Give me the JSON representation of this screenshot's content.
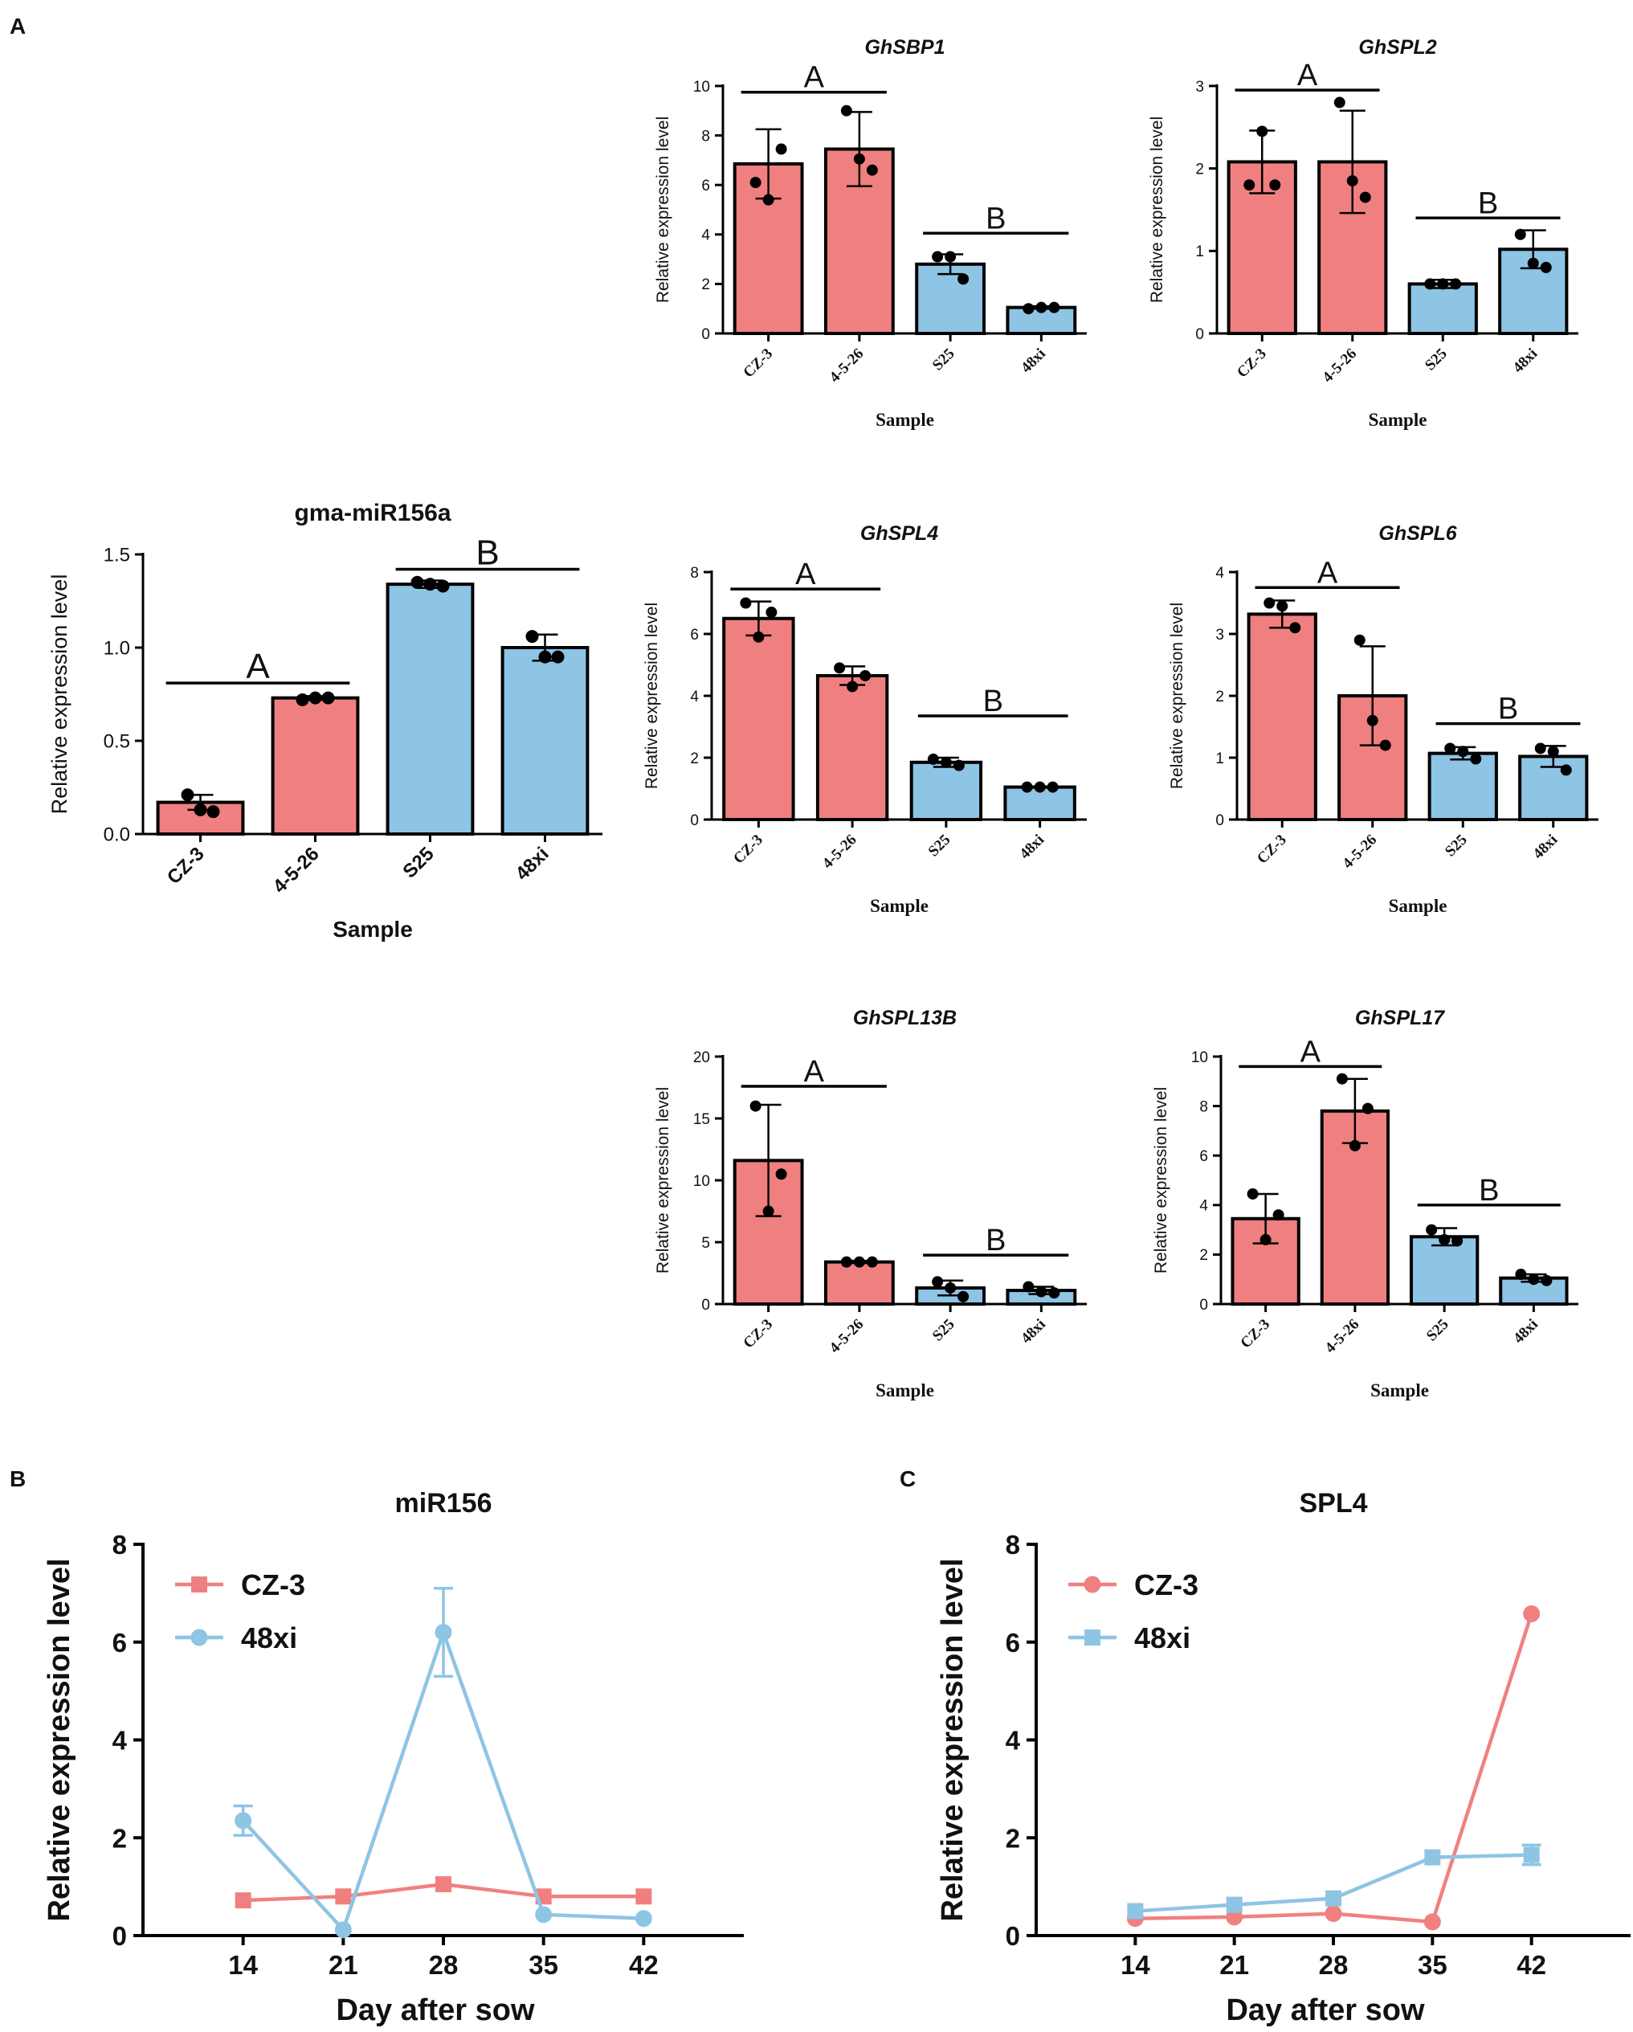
{
  "panels": {
    "A": "A",
    "B": "B",
    "C": "C"
  },
  "colors": {
    "red": "#F08080",
    "blue": "#8EC4E4",
    "axis": "#000000"
  },
  "chart_data": [
    {
      "id": "ghsbp1",
      "type": "bar",
      "title": "GhSBP1",
      "italic_title": true,
      "xlabel": "Sample",
      "ylabel": "Relative expression level",
      "categories": [
        "CZ-3",
        "4-5-26",
        "S25",
        "48xi"
      ],
      "values": [
        6.85,
        7.45,
        2.8,
        1.05
      ],
      "errors": [
        1.4,
        1.5,
        0.4,
        0.05
      ],
      "points": [
        [
          6.1,
          7.45,
          5.4
        ],
        [
          9.0,
          6.6,
          7.05
        ],
        [
          3.1,
          2.2,
          3.1
        ],
        [
          1.0,
          1.05,
          1.05
        ]
      ],
      "bar_colors": [
        "red",
        "red",
        "blue",
        "blue"
      ],
      "ylim": [
        0,
        10
      ],
      "yticks": [
        0,
        2,
        4,
        6,
        8,
        10
      ],
      "tick_labels": [
        "0",
        "2",
        "4",
        "6",
        "8",
        "10"
      ],
      "groups": [
        {
          "label": "A",
          "from": 0,
          "to": 1,
          "y": 9.75
        },
        {
          "label": "B",
          "from": 2,
          "to": 3,
          "y": 4.05
        }
      ]
    },
    {
      "id": "ghspl2",
      "type": "bar",
      "title": "GhSPL2",
      "italic_title": true,
      "xlabel": "Sample",
      "ylabel": "Relative expression level",
      "categories": [
        "CZ-3",
        "4-5-26",
        "S25",
        "48xi"
      ],
      "values": [
        2.08,
        2.08,
        0.6,
        1.02
      ],
      "errors": [
        0.38,
        0.62,
        0.05,
        0.23
      ],
      "points": [
        [
          1.8,
          1.8,
          2.45
        ],
        [
          2.8,
          1.65,
          1.85
        ],
        [
          0.6,
          0.6,
          0.6
        ],
        [
          1.2,
          0.8,
          0.85
        ]
      ],
      "bar_colors": [
        "red",
        "red",
        "blue",
        "blue"
      ],
      "ylim": [
        0,
        3
      ],
      "yticks": [
        0,
        1,
        2,
        3
      ],
      "tick_labels": [
        "0",
        "1",
        "2",
        "3"
      ],
      "groups": [
        {
          "label": "A",
          "from": 0,
          "to": 1,
          "y": 2.95
        },
        {
          "label": "B",
          "from": 2,
          "to": 3,
          "y": 1.4
        }
      ]
    },
    {
      "id": "gma-mir156a",
      "type": "bar",
      "title": "gma-miR156a",
      "italic_title": false,
      "xlabel": "Sample",
      "ylabel": "Relative expression level",
      "categories": [
        "CZ-3",
        "4-5-26",
        "S25",
        "48xi"
      ],
      "values": [
        0.17,
        0.73,
        1.34,
        1.0
      ],
      "errors": [
        0.04,
        0.01,
        0.02,
        0.07
      ],
      "points": [
        [
          0.21,
          0.12,
          0.13
        ],
        [
          0.72,
          0.73,
          0.73
        ],
        [
          1.35,
          1.33,
          1.34
        ],
        [
          1.06,
          0.95,
          0.95
        ]
      ],
      "bar_colors": [
        "red",
        "red",
        "blue",
        "blue"
      ],
      "ylim": [
        0,
        1.5
      ],
      "yticks": [
        0,
        0.5,
        1.0,
        1.5
      ],
      "tick_labels": [
        "0.0",
        "0.5",
        "1.0",
        "1.5"
      ],
      "groups": [
        {
          "label": "A",
          "from": 0,
          "to": 1,
          "y": 0.81
        },
        {
          "label": "B",
          "from": 2,
          "to": 3,
          "y": 1.42
        }
      ]
    },
    {
      "id": "ghspl4",
      "type": "bar",
      "title": "GhSPL4",
      "italic_title": true,
      "xlabel": "Sample",
      "ylabel": "Relative expression level",
      "categories": [
        "CZ-3",
        "4-5-26",
        "S25",
        "48xi"
      ],
      "values": [
        6.5,
        4.65,
        1.85,
        1.05
      ],
      "errors": [
        0.55,
        0.3,
        0.15,
        0.02
      ],
      "points": [
        [
          7.0,
          6.7,
          5.9
        ],
        [
          4.9,
          4.65,
          4.3
        ],
        [
          1.95,
          1.75,
          1.85
        ],
        [
          1.05,
          1.05,
          1.05
        ]
      ],
      "bar_colors": [
        "red",
        "red",
        "blue",
        "blue"
      ],
      "ylim": [
        0,
        8
      ],
      "yticks": [
        0,
        2,
        4,
        6,
        8
      ],
      "tick_labels": [
        "0",
        "2",
        "4",
        "6",
        "8"
      ],
      "groups": [
        {
          "label": "A",
          "from": 0,
          "to": 1,
          "y": 7.45
        },
        {
          "label": "B",
          "from": 2,
          "to": 3,
          "y": 3.35
        }
      ]
    },
    {
      "id": "ghspl6",
      "type": "bar",
      "title": "GhSPL6",
      "italic_title": true,
      "xlabel": "Sample",
      "ylabel": "Relative expression level",
      "categories": [
        "CZ-3",
        "4-5-26",
        "S25",
        "48xi"
      ],
      "values": [
        3.32,
        2.0,
        1.07,
        1.02
      ],
      "errors": [
        0.22,
        0.8,
        0.1,
        0.17
      ],
      "points": [
        [
          3.5,
          3.1,
          3.45
        ],
        [
          2.9,
          1.2,
          1.6
        ],
        [
          1.15,
          0.98,
          1.1
        ],
        [
          1.15,
          0.8,
          1.1
        ]
      ],
      "bar_colors": [
        "red",
        "red",
        "blue",
        "blue"
      ],
      "ylim": [
        0,
        4
      ],
      "yticks": [
        0,
        1,
        2,
        3,
        4
      ],
      "tick_labels": [
        "0",
        "1",
        "2",
        "3",
        "4"
      ],
      "groups": [
        {
          "label": "A",
          "from": 0,
          "to": 1,
          "y": 3.75
        },
        {
          "label": "B",
          "from": 2,
          "to": 3,
          "y": 1.55
        }
      ]
    },
    {
      "id": "ghspl13b",
      "type": "bar",
      "title": "GhSPL13B",
      "italic_title": true,
      "xlabel": "Sample",
      "ylabel": "Relative expression level",
      "categories": [
        "CZ-3",
        "4-5-26",
        "S25",
        "48xi"
      ],
      "values": [
        11.6,
        3.4,
        1.3,
        1.1
      ],
      "errors": [
        4.5,
        0.1,
        0.6,
        0.3
      ],
      "points": [
        [
          16.0,
          10.5,
          7.5
        ],
        [
          3.4,
          3.4,
          3.4
        ],
        [
          1.8,
          0.6,
          1.3
        ],
        [
          1.4,
          0.9,
          1.0
        ]
      ],
      "bar_colors": [
        "red",
        "red",
        "blue",
        "blue"
      ],
      "ylim": [
        0,
        20
      ],
      "yticks": [
        0,
        5,
        10,
        15,
        20
      ],
      "tick_labels": [
        "0",
        "5",
        "10",
        "15",
        "20"
      ],
      "groups": [
        {
          "label": "A",
          "from": 0,
          "to": 1,
          "y": 17.6
        },
        {
          "label": "B",
          "from": 2,
          "to": 3,
          "y": 3.95
        }
      ]
    },
    {
      "id": "ghspl17",
      "type": "bar",
      "title": "GhSPL17",
      "italic_title": true,
      "xlabel": "Sample",
      "ylabel": "Relative expression level",
      "categories": [
        "CZ-3",
        "4-5-26",
        "S25",
        "48xi"
      ],
      "values": [
        3.45,
        7.8,
        2.72,
        1.05
      ],
      "errors": [
        1.0,
        1.3,
        0.35,
        0.15
      ],
      "points": [
        [
          4.45,
          3.6,
          2.6
        ],
        [
          9.1,
          7.9,
          6.4
        ],
        [
          3.0,
          2.55,
          2.6
        ],
        [
          1.2,
          0.95,
          1.0
        ]
      ],
      "bar_colors": [
        "red",
        "red",
        "blue",
        "blue"
      ],
      "ylim": [
        0,
        10
      ],
      "yticks": [
        0,
        2,
        4,
        6,
        8,
        10
      ],
      "tick_labels": [
        "0",
        "2",
        "4",
        "6",
        "8",
        "10"
      ],
      "groups": [
        {
          "label": "A",
          "from": 0,
          "to": 1,
          "y": 9.6
        },
        {
          "label": "B",
          "from": 2,
          "to": 3,
          "y": 4.0
        }
      ]
    },
    {
      "id": "mir156",
      "type": "line",
      "title": "miR156",
      "xlabel": "Day after sow",
      "ylabel": "Relative expression level",
      "x": [
        14,
        21,
        28,
        35,
        42
      ],
      "xlim": [
        7,
        49
      ],
      "ylim": [
        0,
        8
      ],
      "yticks": [
        0,
        2,
        4,
        6,
        8
      ],
      "tick_labels": [
        "0",
        "2",
        "4",
        "6",
        "8"
      ],
      "series": [
        {
          "name": "CZ-3",
          "color": "red",
          "marker": "square",
          "values": [
            0.72,
            0.8,
            1.05,
            0.8,
            0.8
          ],
          "errors": [
            0.03,
            0.03,
            0.04,
            0.03,
            0.03
          ]
        },
        {
          "name": "48xi",
          "color": "blue",
          "marker": "circle",
          "values": [
            2.35,
            0.12,
            6.2,
            0.43,
            0.35
          ],
          "errors": [
            0.3,
            0.03,
            0.9,
            0.04,
            0.03
          ]
        }
      ]
    },
    {
      "id": "spl4",
      "type": "line",
      "title": "SPL4",
      "xlabel": "Day after sow",
      "ylabel": "Relative expression level",
      "x": [
        14,
        21,
        28,
        35,
        42
      ],
      "xlim": [
        7,
        49
      ],
      "ylim": [
        0,
        8
      ],
      "yticks": [
        0,
        2,
        4,
        6,
        8
      ],
      "tick_labels": [
        "0",
        "2",
        "4",
        "6",
        "8"
      ],
      "series": [
        {
          "name": "CZ-3",
          "color": "red",
          "marker": "circle",
          "values": [
            0.35,
            0.38,
            0.45,
            0.28,
            6.58
          ],
          "errors": [
            0.02,
            0.02,
            0.02,
            0.02,
            0.05
          ]
        },
        {
          "name": "48xi",
          "color": "blue",
          "marker": "square",
          "values": [
            0.5,
            0.63,
            0.76,
            1.6,
            1.65
          ],
          "errors": [
            0.02,
            0.03,
            0.03,
            0.05,
            0.2
          ]
        }
      ]
    }
  ]
}
